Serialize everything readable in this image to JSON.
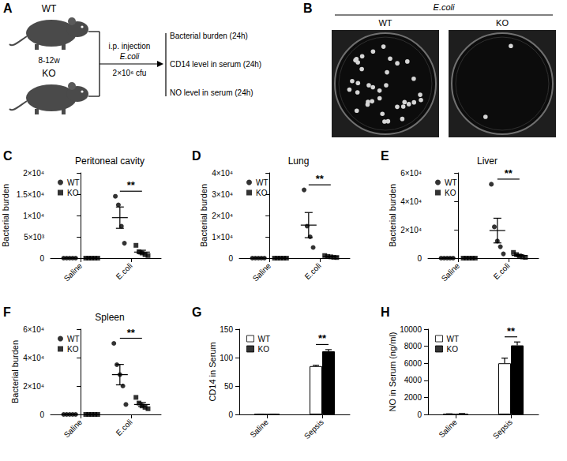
{
  "schematic": {
    "panel": "A",
    "mice": [
      "WT",
      "KO"
    ],
    "age": "8-12w",
    "route": "i.p. injection",
    "agent": "E.coli",
    "dose": "2×10⁶ cfu",
    "readouts": [
      "Bacterial burden (24h)",
      "CD14 level in serum (24h)",
      "NO level in serum (24h)"
    ]
  },
  "plates": {
    "panel": "B",
    "title": "E.coli",
    "plates": [
      {
        "label": "WT",
        "colonies": 36
      },
      {
        "label": "KO",
        "colonies": 2
      }
    ]
  },
  "chart_data": [
    {
      "panel": "C",
      "type": "scatter",
      "title": "Peritoneal cavity",
      "y_label": "Bacterial burden",
      "categories": [
        "Saline",
        "E.coli"
      ],
      "series": [
        {
          "name": "WT",
          "color": "#000000",
          "marker": "circle",
          "values": [
            [
              0,
              0,
              0,
              0,
              0
            ],
            [
              14500,
              12500,
              7500,
              3500
            ]
          ],
          "mean": [
            0,
            9500
          ],
          "sem": [
            0,
            2500
          ]
        },
        {
          "name": "KO",
          "color": "#000000",
          "marker": "square",
          "values": [
            [
              0,
              0,
              0,
              0,
              0
            ],
            [
              3000,
              1500,
              1200,
              800,
              600
            ]
          ],
          "mean": [
            0,
            1420
          ],
          "sem": [
            0,
            430
          ]
        }
      ],
      "ylim": [
        0,
        20000
      ],
      "yticks": [
        0,
        {
          "value": 5000,
          "label": "5×10³"
        },
        {
          "value": 10000,
          "label": "1×10⁴"
        },
        {
          "value": 15000,
          "label": "1.5×10⁴"
        },
        {
          "value": 20000,
          "label": "2×10⁴"
        }
      ],
      "legend": "upper left",
      "annotations": [
        {
          "text": "**",
          "category": "E.coli"
        }
      ]
    },
    {
      "panel": "D",
      "type": "scatter",
      "title": "Lung",
      "y_label": "Bacterial burden",
      "categories": [
        "Saline",
        "E.coli"
      ],
      "series": [
        {
          "name": "WT",
          "color": "#000000",
          "marker": "circle",
          "values": [
            [
              0,
              0,
              0,
              0,
              0
            ],
            [
              32000,
              15000,
              10000,
              5000
            ]
          ],
          "mean": [
            0,
            15500
          ],
          "sem": [
            0,
            5900
          ]
        },
        {
          "name": "KO",
          "color": "#000000",
          "marker": "square",
          "values": [
            [
              0,
              0,
              0,
              0,
              0
            ],
            [
              1200,
              800,
              600,
              400,
              300
            ]
          ],
          "mean": [
            0,
            660
          ],
          "sem": [
            0,
            160
          ]
        }
      ],
      "ylim": [
        0,
        40000
      ],
      "yticks": [
        0,
        {
          "value": 10000,
          "label": "1×10⁴"
        },
        {
          "value": 20000,
          "label": "2×10⁴"
        },
        {
          "value": 30000,
          "label": "3×10⁴"
        },
        {
          "value": 40000,
          "label": "4×10⁴"
        }
      ],
      "legend": "upper left",
      "annotations": [
        {
          "text": "**",
          "category": "E.coli"
        }
      ]
    },
    {
      "panel": "E",
      "type": "scatter",
      "title": "Liver",
      "y_label": "Bacterial burden",
      "categories": [
        "Saline",
        "E.coli"
      ],
      "series": [
        {
          "name": "WT",
          "color": "#000000",
          "marker": "circle",
          "values": [
            [
              0,
              0,
              0,
              0,
              0
            ],
            [
              52000,
              22000,
              12000,
              8000,
              3000
            ]
          ],
          "mean": [
            0,
            19400
          ],
          "sem": [
            0,
            8700
          ]
        },
        {
          "name": "KO",
          "color": "#000000",
          "marker": "square",
          "values": [
            [
              0,
              0,
              0,
              0,
              0
            ],
            [
              4000,
              2500,
              1500,
              800,
              500
            ]
          ],
          "mean": [
            0,
            1860
          ],
          "sem": [
            0,
            640
          ]
        }
      ],
      "ylim": [
        0,
        60000
      ],
      "yticks": [
        0,
        {
          "value": 20000,
          "label": "2×10⁴"
        },
        {
          "value": 40000,
          "label": "4×10⁴"
        },
        {
          "value": 60000,
          "label": "6×10⁴"
        }
      ],
      "legend": "upper left",
      "annotations": [
        {
          "text": "**",
          "category": "E.coli"
        }
      ]
    },
    {
      "panel": "F",
      "type": "scatter",
      "title": "Spleen",
      "y_label": "Bacterial burden",
      "categories": [
        "Saline",
        "E.coli"
      ],
      "series": [
        {
          "name": "WT",
          "color": "#000000",
          "marker": "circle",
          "values": [
            [
              0,
              0,
              0,
              0,
              0
            ],
            [
              50000,
              35000,
              28000,
              20000,
              7000
            ]
          ],
          "mean": [
            0,
            28000
          ],
          "sem": [
            0,
            7200
          ]
        },
        {
          "name": "KO",
          "color": "#000000",
          "marker": "square",
          "values": [
            [
              0,
              0,
              0,
              0,
              0
            ],
            [
              12000,
              8000,
              6000,
              5000,
              4000
            ]
          ],
          "mean": [
            0,
            7000
          ],
          "sem": [
            0,
            1410
          ]
        }
      ],
      "ylim": [
        0,
        60000
      ],
      "yticks": [
        0,
        {
          "value": 20000,
          "label": "2×10⁴"
        },
        {
          "value": 40000,
          "label": "4×10⁴"
        },
        {
          "value": 60000,
          "label": "6×10⁴"
        }
      ],
      "legend": "upper left",
      "annotations": [
        {
          "text": "**",
          "category": "E.coli"
        }
      ]
    },
    {
      "panel": "G",
      "type": "bar",
      "y_label": "CD14 in Serum",
      "categories": [
        "Saline",
        "Sepsis"
      ],
      "series": [
        {
          "name": "WT",
          "color": "#ffffff",
          "values": [
            0.5,
            85
          ],
          "sem": [
            0,
            1.5
          ]
        },
        {
          "name": "KO",
          "color": "#000000",
          "values": [
            0.5,
            111
          ],
          "sem": [
            0,
            3
          ]
        }
      ],
      "ylim": [
        0,
        150
      ],
      "yticks": [
        0,
        50,
        100,
        150
      ],
      "legend": "upper left",
      "annotations": [
        {
          "text": "**",
          "category": "Sepsis"
        }
      ]
    },
    {
      "panel": "H",
      "type": "bar",
      "y_label": "NO in Serum (ng/ml)",
      "categories": [
        "Saline",
        "Sepsis"
      ],
      "series": [
        {
          "name": "WT",
          "color": "#ffffff",
          "values": [
            50,
            6000
          ],
          "sem": [
            20,
            600
          ]
        },
        {
          "name": "KO",
          "color": "#000000",
          "values": [
            80,
            8100
          ],
          "sem": [
            20,
            400
          ]
        }
      ],
      "ylim": [
        0,
        10000
      ],
      "yticks": [
        0,
        2000,
        4000,
        6000,
        8000,
        10000
      ],
      "legend": "upper left",
      "annotations": [
        {
          "text": "**",
          "category": "Sepsis"
        }
      ]
    }
  ]
}
